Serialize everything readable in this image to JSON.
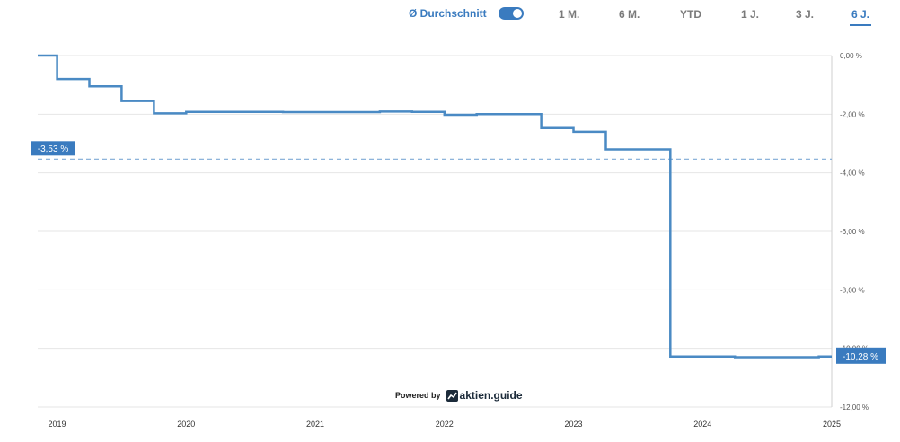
{
  "toolbar": {
    "average_label": "Ø Durchschnitt",
    "average_enabled": true,
    "ranges": [
      "1 M.",
      "6 M.",
      "YTD",
      "1 J.",
      "3 J.",
      "6 J."
    ],
    "active_range": "6 J."
  },
  "branding": {
    "powered_by": "Powered by",
    "logo_text": "aktien.guide"
  },
  "colors": {
    "accent": "#3a7bbf",
    "line": "#4a8ac4",
    "grid": "#e6e6e6"
  },
  "chart_data": {
    "type": "line",
    "title": "",
    "xlabel": "",
    "ylabel": "",
    "x_ticks": [
      "2019",
      "2020",
      "2021",
      "2022",
      "2023",
      "2024",
      "2025"
    ],
    "y_ticks": [
      "0,00 %",
      "-2,00 %",
      "-4,00 %",
      "-6,00 %",
      "-8,00 %",
      "-10,00 %",
      "-12,00 %"
    ],
    "ylim": [
      -12,
      0
    ],
    "xlim": [
      2018.85,
      2025.0
    ],
    "grid": true,
    "step": true,
    "series": [
      {
        "x": [
          2018.85,
          2019.0,
          2019.0,
          2019.25,
          2019.25,
          2019.5,
          2019.5,
          2019.75,
          2019.75,
          2020.0,
          2020.0,
          2020.75,
          2020.75,
          2021.5,
          2021.5,
          2021.75,
          2021.75,
          2022.0,
          2022.0,
          2022.25,
          2022.25,
          2022.75,
          2022.75,
          2023.0,
          2023.0,
          2023.25,
          2023.25,
          2023.75,
          2023.75,
          2024.25,
          2024.25,
          2024.9,
          2024.9,
          2025.0
        ],
        "y": [
          0.0,
          0.0,
          -0.8,
          -0.8,
          -1.05,
          -1.05,
          -1.55,
          -1.55,
          -1.97,
          -1.97,
          -1.92,
          -1.92,
          -1.93,
          -1.93,
          -1.91,
          -1.91,
          -1.92,
          -1.92,
          -2.02,
          -2.02,
          -2.0,
          -2.0,
          -2.47,
          -2.47,
          -2.6,
          -2.6,
          -3.2,
          -3.2,
          -10.28,
          -10.28,
          -10.3,
          -10.3,
          -10.28,
          -10.28
        ]
      }
    ],
    "average": {
      "value": -3.53,
      "label": "-3,53 %"
    },
    "last_value_label": "-10,28 %",
    "last_value": -10.28
  }
}
